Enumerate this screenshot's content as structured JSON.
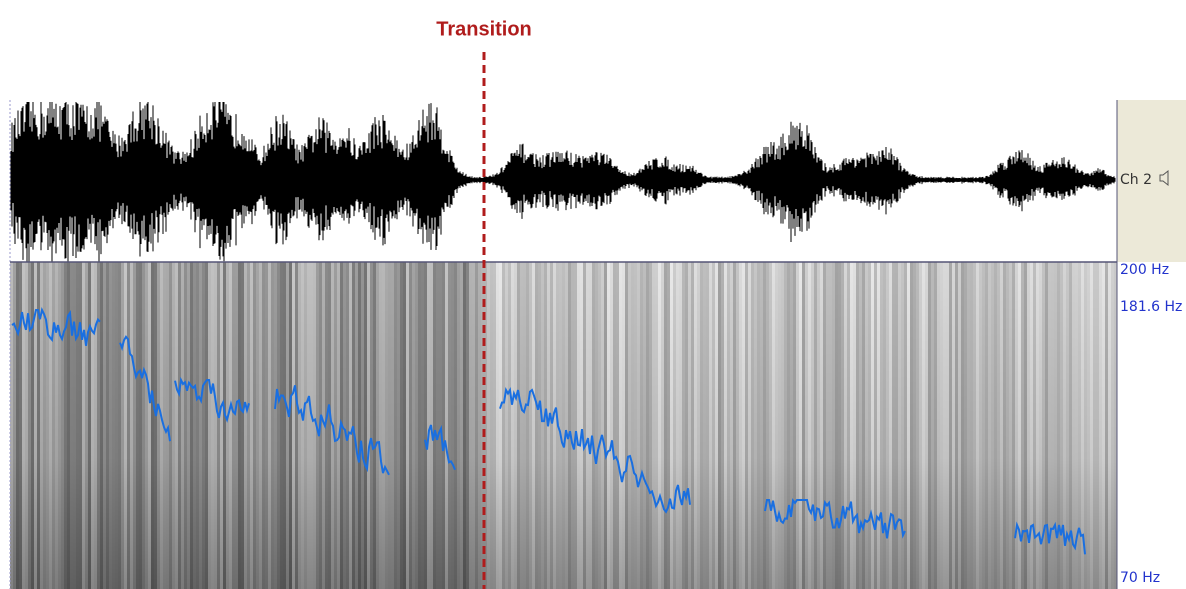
{
  "header": {
    "annotation": "Transition"
  },
  "waveform": {
    "channel_label": "Ch 2"
  },
  "spectrogram": {
    "frequency_labels": {
      "top": "200 Hz",
      "pitch": "181.6 Hz",
      "bottom": "70 Hz"
    }
  }
}
